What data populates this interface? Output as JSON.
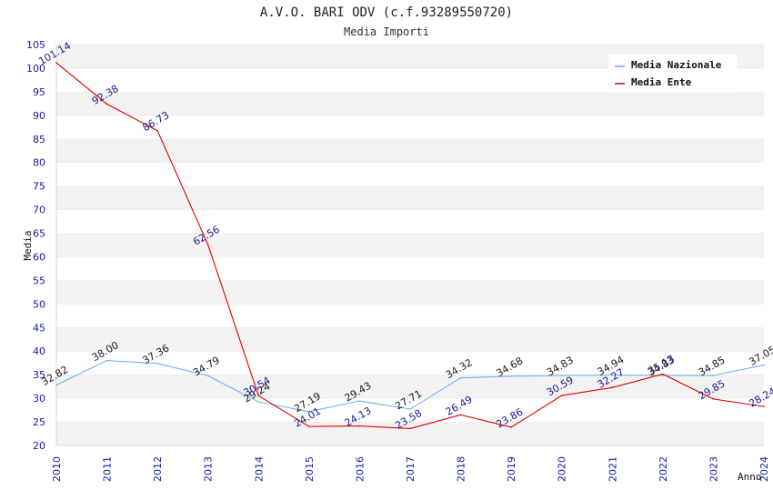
{
  "chart_data": {
    "type": "line",
    "title": "A.V.O. BARI ODV (c.f.93289550720)",
    "subtitle": "Media Importi",
    "xlabel": "Anno",
    "ylabel": "Media",
    "ylim": [
      20,
      105
    ],
    "yticks": [
      "20",
      "25",
      "30",
      "35",
      "40",
      "45",
      "50",
      "55",
      "60",
      "65",
      "70",
      "75",
      "80",
      "85",
      "90",
      "95",
      "100",
      "105"
    ],
    "x": [
      "2010",
      "2011",
      "2012",
      "2013",
      "2014",
      "2015",
      "2016",
      "2017",
      "2018",
      "2019",
      "2020",
      "2021",
      "2022",
      "2023",
      "2024"
    ],
    "grid": "horizontal alternating bands",
    "legend_position": "top-right",
    "series": [
      {
        "name": "Media Nazionale",
        "color": "#6aa9e8",
        "values": [
          32.82,
          38.0,
          37.36,
          34.79,
          29.24,
          27.19,
          29.43,
          27.71,
          34.32,
          34.68,
          34.83,
          34.94,
          34.83,
          34.85,
          37.05
        ],
        "labels": [
          "32.82",
          "38.00",
          "37.36",
          "34.79",
          "29.24",
          "27.19",
          "29.43",
          "27.71",
          "34.32",
          "34.68",
          "34.83",
          "34.94",
          "34.83",
          "34.85",
          "37.05"
        ]
      },
      {
        "name": "Media Ente",
        "color": "#e00000",
        "values": [
          101.14,
          92.38,
          86.73,
          62.56,
          30.54,
          24.01,
          24.13,
          23.58,
          26.49,
          23.86,
          30.59,
          32.27,
          35.13,
          29.85,
          28.24
        ],
        "labels": [
          "101.14",
          "92.38",
          "86.73",
          "62.56",
          "30.54",
          "24.01",
          "24.13",
          "23.58",
          "26.49",
          "23.86",
          "30.59",
          "32.27",
          "35.13",
          "29.85",
          "28.24"
        ]
      }
    ]
  }
}
